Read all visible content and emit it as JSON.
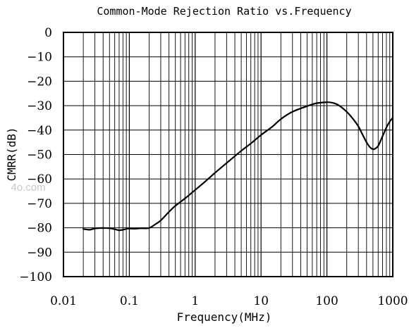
{
  "chart_data": {
    "type": "line",
    "title": "Common-Mode Rejection Ratio vs.Frequency",
    "xlabel": "Frequency(MHz)",
    "ylabel": "CMRR(dB)",
    "x_scale": "log",
    "xlim": [
      0.01,
      1000
    ],
    "ylim": [
      -100,
      0
    ],
    "x_ticks": [
      "0.01",
      "0.1",
      "1",
      "10",
      "100",
      "1000"
    ],
    "y_ticks": [
      "0",
      "−10",
      "−20",
      "−30",
      "−40",
      "−50",
      "−60",
      "−70",
      "−80",
      "−90",
      "−100"
    ],
    "grid": true,
    "series": [
      {
        "color": "#000000",
        "x": [
          0.02,
          0.025,
          0.03,
          0.04,
          0.05,
          0.06,
          0.07,
          0.08,
          0.09,
          0.1,
          0.12,
          0.15,
          0.2,
          0.25,
          0.3,
          0.4,
          0.5,
          0.7,
          1,
          1.5,
          2,
          3,
          5,
          7,
          10,
          15,
          20,
          30,
          50,
          70,
          100,
          120,
          150,
          200,
          250,
          300,
          350,
          400,
          450,
          500,
          550,
          600,
          650,
          700,
          800,
          900,
          1000
        ],
        "y": [
          -80.5,
          -80.8,
          -80.3,
          -80.1,
          -80.2,
          -80.6,
          -81,
          -80.8,
          -80.5,
          -80.3,
          -80.4,
          -80.2,
          -80.1,
          -78.5,
          -77,
          -73.5,
          -71,
          -68,
          -64.5,
          -60.5,
          -57.5,
          -53.5,
          -48.5,
          -45.5,
          -42,
          -38.5,
          -35.5,
          -32.5,
          -30.2,
          -29,
          -28.6,
          -28.8,
          -29.8,
          -32.5,
          -35.5,
          -38.5,
          -42,
          -45,
          -47,
          -47.8,
          -47.5,
          -46.5,
          -44.5,
          -42.5,
          -39,
          -36.5,
          -35
        ]
      }
    ]
  },
  "watermark": "4o.com"
}
